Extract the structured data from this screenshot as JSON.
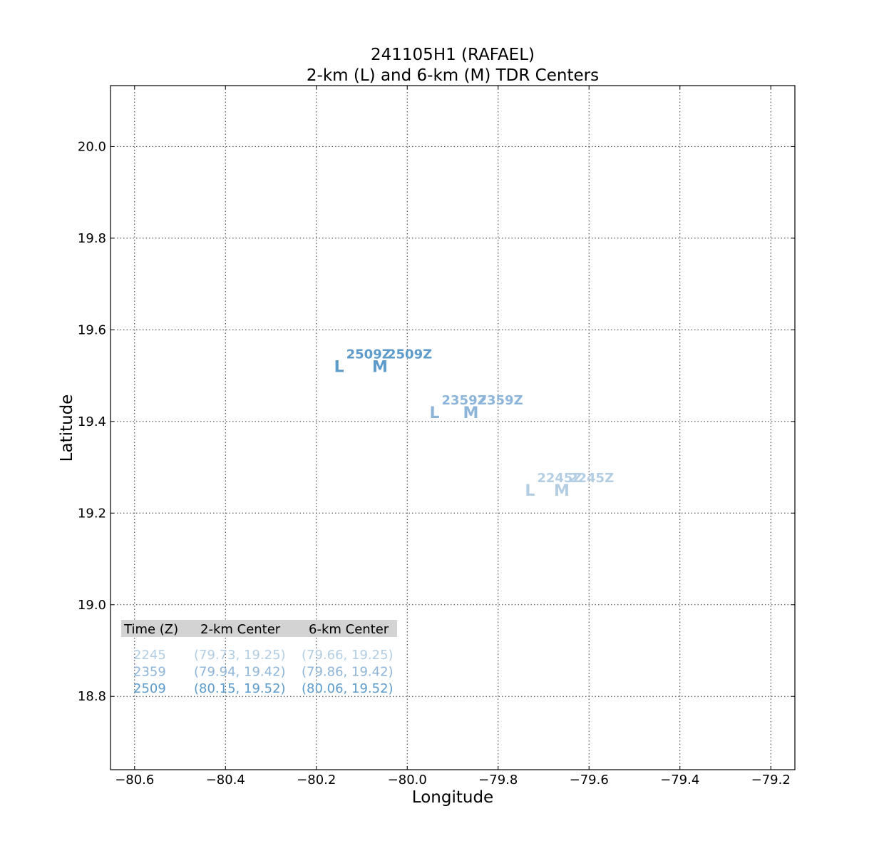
{
  "chart_data": {
    "type": "scatter",
    "title": "241105H1 (RAFAEL)",
    "subtitle": "2-km (L) and 6-km (M) TDR Centers",
    "xlabel": "Longitude",
    "ylabel": "Latitude",
    "xlim": [
      -80.653,
      -79.147
    ],
    "ylim": [
      18.64,
      20.133
    ],
    "x_ticks": [
      -80.6,
      -80.4,
      -80.2,
      -80.0,
      -79.8,
      -79.6,
      -79.4,
      -79.2
    ],
    "x_tick_labels": [
      "−80.6",
      "−80.4",
      "−80.2",
      "−80.0",
      "−79.8",
      "−79.6",
      "−79.4",
      "−79.2"
    ],
    "y_ticks": [
      18.8,
      19.0,
      19.2,
      19.4,
      19.6,
      19.8,
      20.0
    ],
    "y_tick_labels": [
      "18.8",
      "19.0",
      "19.2",
      "19.4",
      "19.6",
      "19.8",
      "20.0"
    ],
    "grid": true,
    "series": [
      {
        "name": "2245",
        "color": "#b3cde3",
        "points": [
          {
            "marker": "L",
            "x": -79.73,
            "y": 19.25,
            "tag": "2245Z"
          },
          {
            "marker": "M",
            "x": -79.66,
            "y": 19.25,
            "tag": "2245Z"
          }
        ]
      },
      {
        "name": "2359",
        "color": "#8db4d9",
        "points": [
          {
            "marker": "L",
            "x": -79.94,
            "y": 19.42,
            "tag": "2359Z"
          },
          {
            "marker": "M",
            "x": -79.86,
            "y": 19.42,
            "tag": "2359Z"
          }
        ]
      },
      {
        "name": "2509",
        "color": "#5d9bcb",
        "points": [
          {
            "marker": "L",
            "x": -80.15,
            "y": 19.52,
            "tag": "2509Z"
          },
          {
            "marker": "M",
            "x": -80.06,
            "y": 19.52,
            "tag": "2509Z"
          }
        ]
      }
    ],
    "table": {
      "header_bg": "#d3d3d3",
      "headers": [
        "Time (Z)",
        "2-km Center",
        "6-km Center"
      ],
      "rows": [
        {
          "time": "2245",
          "center_2km": "(79.73, 19.25)",
          "center_6km": "(79.66, 19.25)",
          "color": "#b3cde3"
        },
        {
          "time": "2359",
          "center_2km": "(79.94, 19.42)",
          "center_6km": "(79.86, 19.42)",
          "color": "#8db4d9"
        },
        {
          "time": "2509",
          "center_2km": "(80.15, 19.52)",
          "center_6km": "(80.06, 19.52)",
          "color": "#5d9bcb"
        }
      ]
    }
  }
}
